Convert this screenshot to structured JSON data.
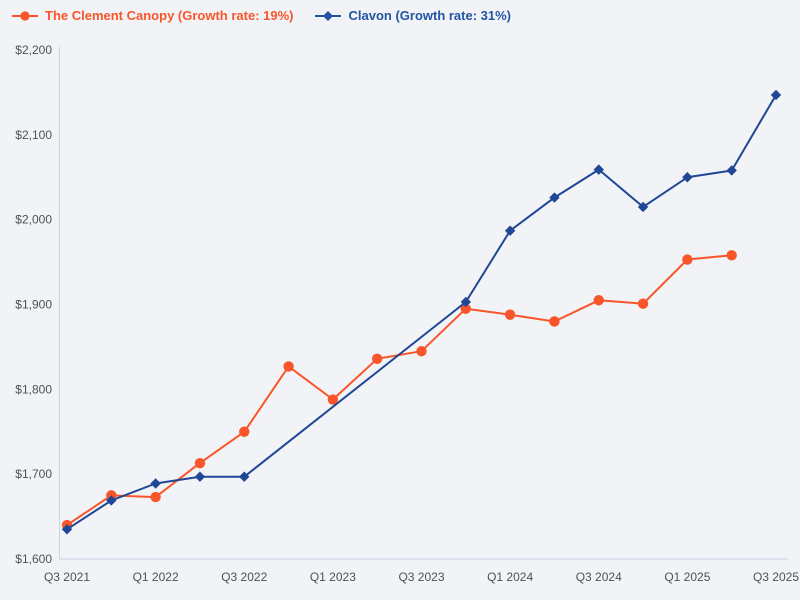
{
  "page": {
    "background": "#f2f3f6"
  },
  "legend": {
    "items": [
      {
        "label": "The Clement Canopy (Growth rate: 19%)",
        "color": "#f8552a",
        "marker": "circle"
      },
      {
        "label": "Clavon (Growth rate: 31%)",
        "color": "#2254a4",
        "marker": "diamond"
      }
    ]
  },
  "chart_data": {
    "type": "line",
    "title": "",
    "categories": [
      "Q3 2021",
      "Q4 2021",
      "Q1 2022",
      "Q2 2022",
      "Q3 2022",
      "Q4 2022",
      "Q1 2023",
      "Q2 2023",
      "Q3 2023",
      "Q4 2023",
      "Q1 2024",
      "Q2 2024",
      "Q3 2024",
      "Q4 2024",
      "Q1 2025",
      "Q2 2025",
      "Q3 2025"
    ],
    "x_tick_labels": [
      "Q3 2021",
      "Q1 2022",
      "Q3 2022",
      "Q1 2023",
      "Q3 2023",
      "Q1 2024",
      "Q3 2024",
      "Q1 2025",
      "Q3 2025"
    ],
    "series": [
      {
        "name": "The Clement Canopy",
        "growth_rate": "19%",
        "color": "#f8552a",
        "marker": "circle",
        "values": [
          1640,
          1675,
          1673,
          1713,
          1750,
          1827,
          1788,
          1836,
          1845,
          1895,
          1888,
          1880,
          1905,
          1901,
          1953,
          1958,
          null
        ]
      },
      {
        "name": "Clavon",
        "growth_rate": "31%",
        "color": "#1f4795",
        "marker": "diamond",
        "values": [
          1635,
          1669,
          1689,
          1697,
          1697,
          null,
          null,
          null,
          null,
          1903,
          1987,
          2026,
          2059,
          2015,
          2050,
          2058,
          2147
        ]
      }
    ],
    "connect_nulls": true,
    "ylim": [
      1600,
      2200
    ],
    "y_ticks": [
      {
        "value": 1600,
        "label": "$1,600"
      },
      {
        "value": 1700,
        "label": "$1,700"
      },
      {
        "value": 1800,
        "label": "$1,800"
      },
      {
        "value": 1900,
        "label": "$1,900"
      },
      {
        "value": 2000,
        "label": "$2,000"
      },
      {
        "value": 2100,
        "label": "$2,100"
      },
      {
        "value": 2200,
        "label": "$2,200"
      }
    ],
    "grid": false,
    "legend_position": "top-left",
    "axis_color": "#c7d2e3",
    "tick_label_color": "#4d5158"
  }
}
